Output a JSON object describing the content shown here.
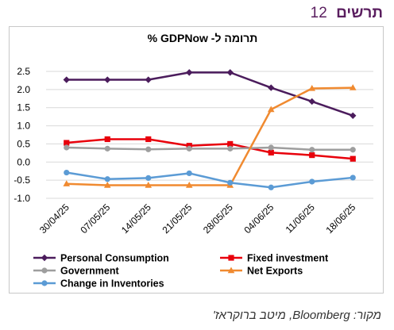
{
  "header": {
    "title": "תרשים",
    "number": "12"
  },
  "source": "מקור: Bloomberg, מיטב ברוקראז'",
  "colors": {
    "personal_consumption": "#4b1c5c",
    "fixed_investment": "#e8000b",
    "government": "#9e9e9e",
    "net_exports": "#f08a30",
    "inventories": "#5b9bd5",
    "gridline": "#d9d9d9"
  },
  "chart_data": {
    "type": "line",
    "title": "תרומה ל-  GDPNow %",
    "x": [
      "30/04/25",
      "07/05/25",
      "14/05/25",
      "21/05/25",
      "28/05/25",
      "04/06/25",
      "11/06/25",
      "18/06/25"
    ],
    "ylim": [
      -1.0,
      2.5
    ],
    "yticks": [
      "2.5",
      "2.0",
      "1.5",
      "1.0",
      "0.5",
      "0.0",
      "-0.5",
      "-1.0"
    ],
    "grid": true,
    "legend_position": "bottom",
    "series": [
      {
        "name": "Personal Consumption",
        "color": "#4b1c5c",
        "marker": "diamond",
        "values": [
          2.27,
          2.27,
          2.27,
          2.47,
          2.47,
          2.05,
          1.67,
          1.28
        ]
      },
      {
        "name": "Fixed investment",
        "color": "#e8000b",
        "marker": "square",
        "values": [
          0.53,
          0.63,
          0.63,
          0.45,
          0.5,
          0.26,
          0.19,
          0.09
        ]
      },
      {
        "name": "Government",
        "color": "#9e9e9e",
        "marker": "circle",
        "values": [
          0.4,
          0.37,
          0.35,
          0.37,
          0.37,
          0.4,
          0.34,
          0.34
        ]
      },
      {
        "name": "Net Exports",
        "color": "#f08a30",
        "marker": "triangle",
        "values": [
          -0.6,
          -0.64,
          -0.64,
          -0.64,
          -0.64,
          1.45,
          2.03,
          2.05
        ]
      },
      {
        "name": "Change in  Inventories",
        "color": "#5b9bd5",
        "marker": "circle",
        "values": [
          -0.29,
          -0.47,
          -0.44,
          -0.31,
          -0.57,
          -0.7,
          -0.54,
          -0.43
        ]
      }
    ]
  }
}
